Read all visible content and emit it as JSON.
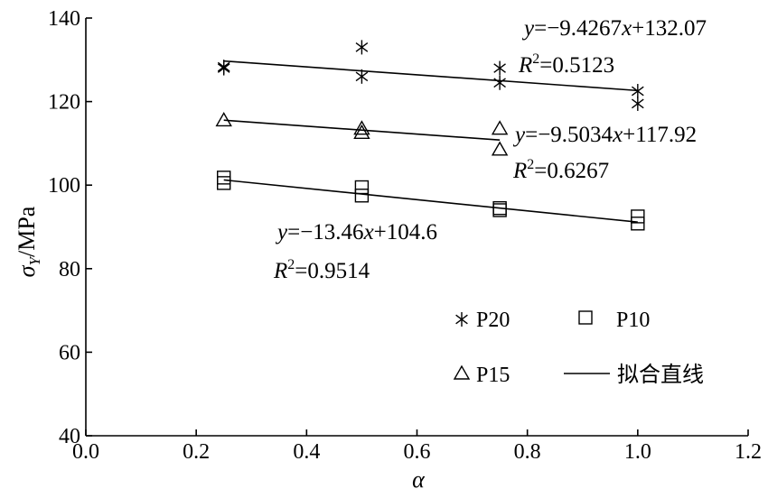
{
  "chart_data": {
    "type": "scatter",
    "xlabel": "α",
    "ylabel_main": "σ",
    "ylabel_sub": "Y",
    "ylabel_unit": "/MPa",
    "xlim": [
      0.0,
      1.2
    ],
    "ylim": [
      40,
      140
    ],
    "x_ticks": [
      "0.0",
      "0.2",
      "0.4",
      "0.6",
      "0.8",
      "1.0",
      "1.2"
    ],
    "y_ticks": [
      "40",
      "60",
      "80",
      "100",
      "120",
      "140"
    ],
    "grid": false,
    "legend_position": "bottom-right",
    "series": [
      {
        "name": "P20",
        "marker": "asterisk",
        "points": [
          {
            "x": 0.25,
            "y": 128.0
          },
          {
            "x": 0.25,
            "y": 128.3
          },
          {
            "x": 0.5,
            "y": 133.0
          },
          {
            "x": 0.5,
            "y": 126.0
          },
          {
            "x": 0.75,
            "y": 128.0
          },
          {
            "x": 0.75,
            "y": 124.5
          },
          {
            "x": 1.0,
            "y": 122.5
          },
          {
            "x": 1.0,
            "y": 119.5
          }
        ],
        "fit": {
          "slope": -9.4267,
          "intercept": 132.07,
          "x_range": [
            0.25,
            1.0
          ]
        },
        "equation": "y=−9.4267x+132.07",
        "r2_value": "=0.5123"
      },
      {
        "name": "P15",
        "marker": "triangle",
        "points": [
          {
            "x": 0.25,
            "y": 115.5
          },
          {
            "x": 0.5,
            "y": 113.5
          },
          {
            "x": 0.5,
            "y": 112.5
          },
          {
            "x": 0.75,
            "y": 113.5
          },
          {
            "x": 0.75,
            "y": 108.5
          }
        ],
        "fit": {
          "slope": -9.5034,
          "intercept": 117.92,
          "x_range": [
            0.25,
            0.75
          ]
        },
        "equation": "y=−9.5034x+117.92",
        "r2_value": "=0.6267"
      },
      {
        "name": "P10",
        "marker": "square",
        "points": [
          {
            "x": 0.25,
            "y": 101.8
          },
          {
            "x": 0.25,
            "y": 100.5
          },
          {
            "x": 0.5,
            "y": 99.5
          },
          {
            "x": 0.5,
            "y": 97.5
          },
          {
            "x": 0.75,
            "y": 94.5
          },
          {
            "x": 0.75,
            "y": 94.0
          },
          {
            "x": 1.0,
            "y": 92.5
          },
          {
            "x": 1.0,
            "y": 90.8
          }
        ],
        "fit": {
          "slope": -13.46,
          "intercept": 104.6,
          "x_range": [
            0.25,
            1.0
          ]
        },
        "equation": "y=−13.46x+104.6",
        "r2_value": "=0.9514"
      }
    ],
    "legend": {
      "p20": "P20",
      "p10": "P10",
      "p15": "P15",
      "fit_line": "拟合直线"
    }
  }
}
